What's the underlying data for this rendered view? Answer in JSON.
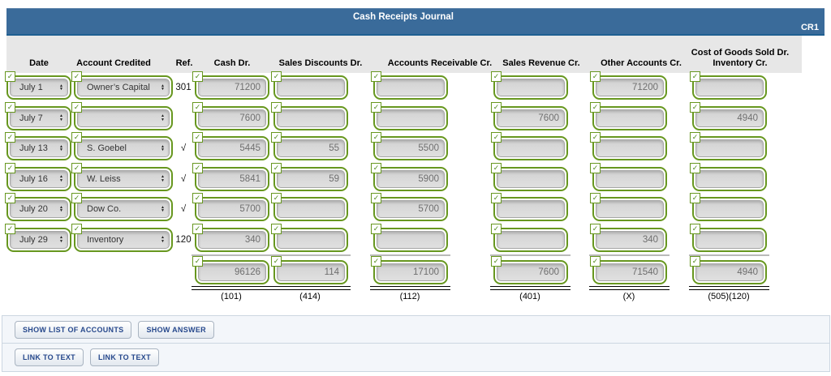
{
  "header": {
    "title": "Cash Receipts Journal",
    "code": "CR1"
  },
  "columns": {
    "date": "Date",
    "account": "Account Credited",
    "ref": "Ref.",
    "cash": "Cash Dr.",
    "sales_discounts": "Sales Discounts Dr.",
    "accounts_receivable": "Accounts Receivable Cr.",
    "sales_revenue": "Sales Revenue Cr.",
    "other_accounts": "Other Accounts Cr.",
    "cogs_line1": "Cost of Goods Sold Dr.",
    "cogs_line2": "Inventory Cr."
  },
  "rows": [
    {
      "date": "July 1",
      "account": "Owner’s Capital",
      "ref": "301",
      "cash": "71200",
      "sales_discounts": "",
      "accounts_receivable": "",
      "sales_revenue": "",
      "other_accounts": "71200",
      "cogs": ""
    },
    {
      "date": "July 7",
      "account": "",
      "ref": "",
      "cash": "7600",
      "sales_discounts": "",
      "accounts_receivable": "",
      "sales_revenue": "7600",
      "other_accounts": "",
      "cogs": "4940"
    },
    {
      "date": "July 13",
      "account": "S. Goebel",
      "ref": "√",
      "cash": "5445",
      "sales_discounts": "55",
      "accounts_receivable": "5500",
      "sales_revenue": "",
      "other_accounts": "",
      "cogs": ""
    },
    {
      "date": "July 16",
      "account": "W. Leiss",
      "ref": "√",
      "cash": "5841",
      "sales_discounts": "59",
      "accounts_receivable": "5900",
      "sales_revenue": "",
      "other_accounts": "",
      "cogs": ""
    },
    {
      "date": "July 20",
      "account": "Dow Co.",
      "ref": "√",
      "cash": "5700",
      "sales_discounts": "",
      "accounts_receivable": "5700",
      "sales_revenue": "",
      "other_accounts": "",
      "cogs": ""
    },
    {
      "date": "July 29",
      "account": "Inventory",
      "ref": "120",
      "cash": "340",
      "sales_discounts": "",
      "accounts_receivable": "",
      "sales_revenue": "",
      "other_accounts": "340",
      "cogs": ""
    }
  ],
  "totals": {
    "cash": "96126",
    "sales_discounts": "114",
    "accounts_receivable": "17100",
    "sales_revenue": "7600",
    "other_accounts": "71540",
    "cogs": "4940",
    "codes": {
      "cash": "(101)",
      "sales_discounts": "(414)",
      "accounts_receivable": "(112)",
      "sales_revenue": "(401)",
      "other_accounts": "(X)",
      "cogs": "(505)(120)"
    }
  },
  "footer": {
    "show_list_label": "SHOW LIST OF ACCOUNTS",
    "show_answer_label": "SHOW ANSWER",
    "link_text_label_1": "LINK TO TEXT",
    "link_text_label_2": "LINK TO TEXT"
  },
  "icons": {
    "check": "✓",
    "arrow_up": "▲",
    "arrow_down": "▼"
  },
  "colors": {
    "header_bar": "#3a6b9a",
    "field_border_green": "#67971f",
    "button_text": "#26488c",
    "panel_bg": "#f3f6fa"
  }
}
